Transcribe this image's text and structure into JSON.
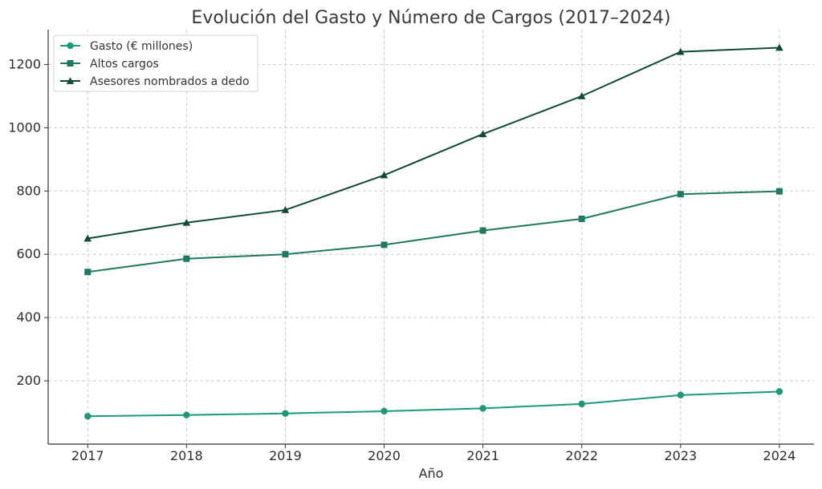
{
  "chart_data": {
    "type": "line",
    "title": "Evolución del Gasto y Número de Cargos (2017–2024)",
    "xlabel": "Año",
    "ylabel": "",
    "x": [
      2017,
      2018,
      2019,
      2020,
      2021,
      2022,
      2023,
      2024
    ],
    "xlim": [
      2016.6,
      2024.35
    ],
    "ylim": [
      0,
      1310
    ],
    "yticks": [
      200,
      400,
      600,
      800,
      1000,
      1200
    ],
    "grid": true,
    "legend_position": "top-left",
    "series": [
      {
        "name": "Gasto (€ millones)",
        "marker": "circle",
        "color": "#1a9a7a",
        "values": [
          88,
          92,
          97,
          104,
          113,
          127,
          155,
          166
        ]
      },
      {
        "name": "Altos cargos",
        "marker": "square",
        "color": "#1e7a62",
        "values": [
          544,
          586,
          600,
          630,
          675,
          712,
          790,
          799
        ]
      },
      {
        "name": "Asesores nombrados a dedo",
        "marker": "triangle",
        "color": "#0f4a38",
        "values": [
          650,
          700,
          740,
          850,
          980,
          1100,
          1240,
          1253
        ]
      }
    ]
  }
}
